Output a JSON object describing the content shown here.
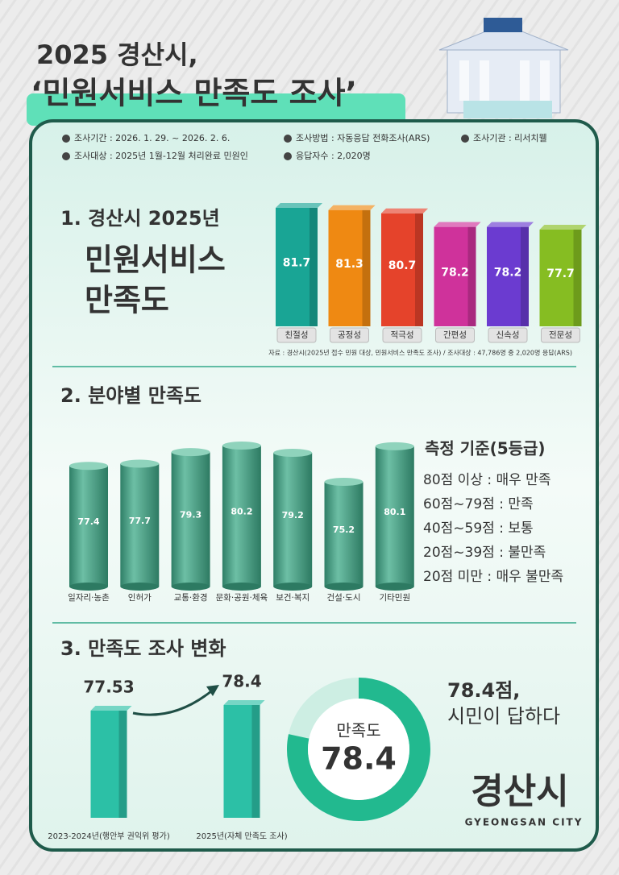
{
  "header": {
    "line1": "2025 경산시,",
    "line2": "‘민원서비스 만족도 조사’"
  },
  "survey_info": [
    "조사기간 : 2026. 1. 29. ~ 2026. 2. 6.",
    "조사방법 : 자동응답 전화조사(ARS)",
    "조사기관 : 리서치웰",
    "조사대상 : 2025년 1월-12월 처리완료 민원인",
    "응답자수 : 2,020명"
  ],
  "chart_data": [
    {
      "type": "bar",
      "title": "1. 경산시 2025년",
      "subtitle": [
        "민원서비스",
        "만족도"
      ],
      "categories": [
        "친절성",
        "공정성",
        "적극성",
        "간편성",
        "신속성",
        "전문성"
      ],
      "values": [
        81.7,
        81.3,
        80.7,
        78.2,
        78.2,
        77.7
      ],
      "colors": [
        "#19a595",
        "#ef8912",
        "#e5432b",
        "#cf329b",
        "#6b3bd0",
        "#86bd22"
      ],
      "label_position": "inside",
      "source": "자료 : 경산시(2025년 접수 민원 대상, 민원서비스 만족도 조사) / 조사대상 : 47,786명 중 2,020명 응답(ARS)"
    },
    {
      "type": "cylinder",
      "title": "2. 분야별 만족도",
      "categories": [
        "일자리·농촌",
        "인허가",
        "교통·환경",
        "문화·공원·체육",
        "보건·복지",
        "건설·도시",
        "기타민원"
      ],
      "values": [
        77.4,
        77.7,
        79.3,
        80.2,
        79.2,
        75.2,
        80.1
      ],
      "color": "#3f9b80",
      "label_position": "inside"
    },
    {
      "type": "bar",
      "title": "3. 만족도 조사 변화",
      "categories": [
        "2023-2024년(행안부 권익위 평가)",
        "2025년(자체 만족도 조사)"
      ],
      "values": [
        77.53,
        78.4
      ],
      "colors": [
        "#2cc0a6",
        "#2cc0a6"
      ],
      "label_position": "top"
    },
    {
      "type": "donut",
      "label": "만족도",
      "value": 78.4,
      "ylim": [
        0,
        100
      ],
      "colors": [
        "#22b98f",
        "#cdeee3"
      ]
    }
  ],
  "criteria": {
    "title": "측정 기준(5등급)",
    "items": [
      "80점 이상 : 매우 만족",
      "60점~79점 : 만족",
      "40점~59점 : 보통",
      "20점~39점 : 불만족",
      "20점 미만 : 매우 불만족"
    ]
  },
  "headline": [
    "78.4점,",
    "시민이 답하다"
  ],
  "logo": {
    "name": "경산시",
    "english": "GYEONGSAN CITY"
  }
}
